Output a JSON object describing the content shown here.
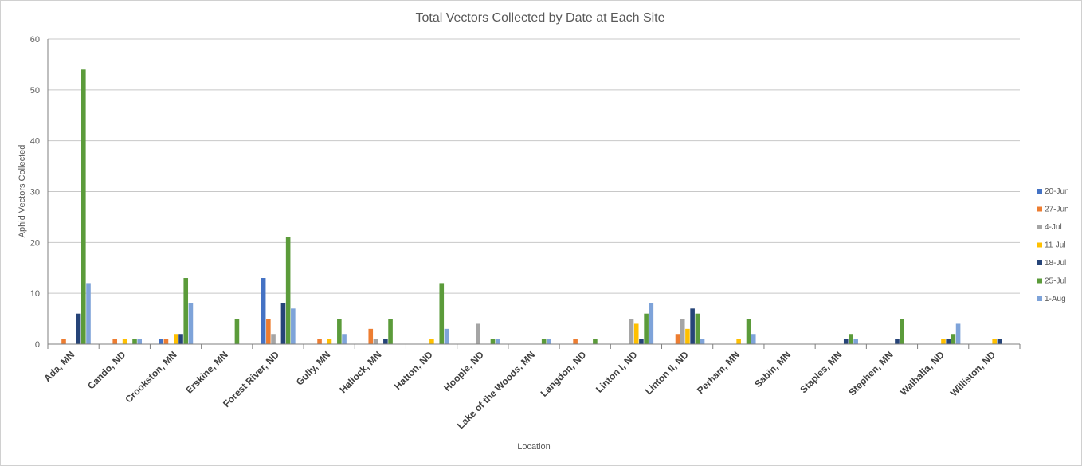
{
  "chart_data": {
    "type": "bar",
    "title": "Total Vectors Collected by Date at Each Site",
    "xlabel": "Location",
    "ylabel": "Aphid Vectors Collected",
    "ylim": [
      0,
      60
    ],
    "yticks": [
      0,
      10,
      20,
      30,
      40,
      50,
      60
    ],
    "grid": true,
    "legend_position": "right",
    "categories": [
      "Ada, MN",
      "Cando, ND",
      "Crookston, MN",
      "Erskine, MN",
      "Forest River, ND",
      "Gully, MN",
      "Hallock, MN",
      "Hatton, ND",
      "Hoople, ND",
      "Lake of the Woods, MN",
      "Langdon, ND",
      "Linton I, ND",
      "Linton II, ND",
      "Perham, MN",
      "Sabin, MN",
      "Staples, MN",
      "Stephen, MN",
      "Walhalla, ND",
      "Williston, ND"
    ],
    "series": [
      {
        "name": "20-Jun",
        "color": "#4472C4",
        "values": [
          0,
          0,
          1,
          0,
          13,
          0,
          0,
          0,
          0,
          0,
          0,
          0,
          0,
          0,
          0,
          0,
          0,
          0,
          0
        ]
      },
      {
        "name": "27-Jun",
        "color": "#ED7D31",
        "values": [
          1,
          1,
          1,
          0,
          5,
          1,
          3,
          0,
          0,
          0,
          1,
          0,
          2,
          0,
          0,
          0,
          0,
          0,
          0
        ]
      },
      {
        "name": "4-Jul",
        "color": "#A5A5A5",
        "values": [
          0,
          0,
          0,
          0,
          2,
          0,
          1,
          0,
          4,
          0,
          0,
          5,
          5,
          0,
          0,
          0,
          0,
          0,
          0
        ]
      },
      {
        "name": "11-Jul",
        "color": "#FFC000",
        "values": [
          0,
          1,
          2,
          0,
          0,
          1,
          0,
          1,
          0,
          0,
          0,
          4,
          3,
          1,
          0,
          0,
          0,
          1,
          1
        ]
      },
      {
        "name": "18-Jul",
        "color": "#264478",
        "values": [
          6,
          0,
          2,
          0,
          8,
          0,
          1,
          0,
          0,
          0,
          0,
          1,
          7,
          0,
          0,
          1,
          1,
          1,
          1
        ]
      },
      {
        "name": "25-Jul",
        "color": "#5B9B3A",
        "values": [
          54,
          1,
          13,
          5,
          21,
          5,
          5,
          12,
          1,
          1,
          1,
          6,
          6,
          5,
          0,
          2,
          5,
          2,
          0
        ]
      },
      {
        "name": "1-Aug",
        "color": "#7EA3D9",
        "values": [
          12,
          1,
          8,
          0,
          7,
          2,
          0,
          3,
          1,
          1,
          0,
          8,
          1,
          2,
          0,
          1,
          0,
          4,
          0
        ]
      }
    ]
  }
}
